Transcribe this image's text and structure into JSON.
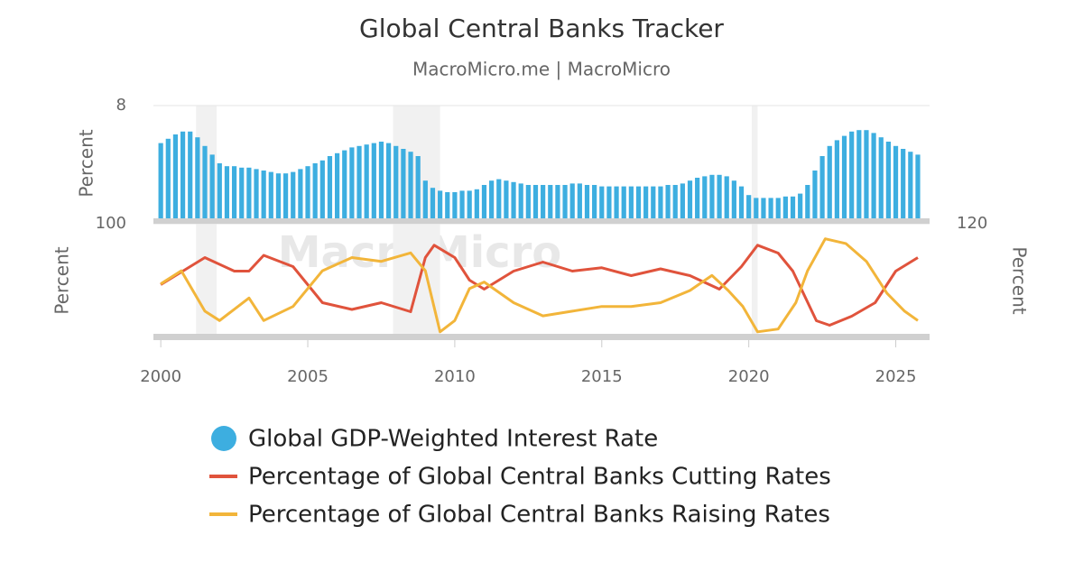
{
  "chart_data": [
    {
      "type": "bar",
      "title": "Global Central Banks Tracker",
      "subtitle": "MacroMicro.me | MacroMicro",
      "watermark": "MacroMicro",
      "y_label": "Percent",
      "ylim": [
        0,
        8
      ],
      "yticks": [
        8
      ],
      "xlim": [
        1999.75,
        2026.15
      ],
      "shaded": [
        [
          2001.2,
          2001.9
        ],
        [
          2007.9,
          2009.5
        ],
        [
          2020.1,
          2020.3
        ]
      ],
      "series": [
        {
          "name": "Global GDP-Weighted Interest Rate",
          "color": "#3daee0",
          "x": [
            2000,
            2000.25,
            2000.5,
            2000.75,
            2001,
            2001.25,
            2001.5,
            2001.75,
            2002,
            2002.25,
            2002.5,
            2002.75,
            2003,
            2003.25,
            2003.5,
            2003.75,
            2004,
            2004.25,
            2004.5,
            2004.75,
            2005,
            2005.25,
            2005.5,
            2005.75,
            2006,
            2006.25,
            2006.5,
            2006.75,
            2007,
            2007.25,
            2007.5,
            2007.75,
            2008,
            2008.25,
            2008.5,
            2008.75,
            2009,
            2009.25,
            2009.5,
            2009.75,
            2010,
            2010.25,
            2010.5,
            2010.75,
            2011,
            2011.25,
            2011.5,
            2011.75,
            2012,
            2012.25,
            2012.5,
            2012.75,
            2013,
            2013.25,
            2013.5,
            2013.75,
            2014,
            2014.25,
            2014.5,
            2014.75,
            2015,
            2015.25,
            2015.5,
            2015.75,
            2016,
            2016.25,
            2016.5,
            2016.75,
            2017,
            2017.25,
            2017.5,
            2017.75,
            2018,
            2018.25,
            2018.5,
            2018.75,
            2019,
            2019.25,
            2019.5,
            2019.75,
            2020,
            2020.25,
            2020.5,
            2020.75,
            2021,
            2021.25,
            2021.5,
            2021.75,
            2022,
            2022.25,
            2022.5,
            2022.75,
            2023,
            2023.25,
            2023.5,
            2023.75,
            2024,
            2024.25,
            2024.5,
            2024.75,
            2025,
            2025.25,
            2025.5,
            2025.75
          ],
          "values": [
            5.4,
            5.7,
            6.0,
            6.2,
            6.2,
            5.8,
            5.2,
            4.6,
            4.0,
            3.8,
            3.8,
            3.7,
            3.7,
            3.6,
            3.5,
            3.4,
            3.3,
            3.3,
            3.4,
            3.6,
            3.8,
            4.0,
            4.2,
            4.5,
            4.7,
            4.9,
            5.1,
            5.2,
            5.3,
            5.4,
            5.5,
            5.4,
            5.2,
            5.0,
            4.8,
            4.5,
            2.8,
            2.3,
            2.1,
            2.0,
            2.0,
            2.1,
            2.1,
            2.2,
            2.5,
            2.8,
            2.9,
            2.8,
            2.7,
            2.6,
            2.5,
            2.5,
            2.5,
            2.5,
            2.5,
            2.5,
            2.6,
            2.6,
            2.5,
            2.5,
            2.4,
            2.4,
            2.4,
            2.4,
            2.4,
            2.4,
            2.4,
            2.4,
            2.4,
            2.5,
            2.5,
            2.6,
            2.8,
            3.0,
            3.1,
            3.2,
            3.2,
            3.1,
            2.8,
            2.4,
            1.8,
            1.6,
            1.6,
            1.6,
            1.6,
            1.7,
            1.7,
            1.9,
            2.5,
            3.5,
            4.5,
            5.2,
            5.6,
            5.9,
            6.2,
            6.3,
            6.3,
            6.1,
            5.8,
            5.5,
            5.2,
            5.0,
            4.8,
            4.6
          ]
        }
      ]
    },
    {
      "type": "line",
      "y_label": "Percent",
      "y2_label": "Percent",
      "ylim": [
        0,
        100
      ],
      "yticks": [
        100
      ],
      "y2lim": [
        0,
        120
      ],
      "y2ticks": [
        120
      ],
      "xlim": [
        1999.75,
        2026.15
      ],
      "xticks": [
        2000,
        2005,
        2010,
        2015,
        2020,
        2025
      ],
      "series": [
        {
          "name": "Percentage of Global Central Banks Cutting Rates",
          "color": "#e0533c",
          "x": [
            2000,
            2001.5,
            2002.5,
            2003,
            2003.5,
            2004.5,
            2005.5,
            2006.5,
            2007.5,
            2008.5,
            2009,
            2009.3,
            2010,
            2010.5,
            2011,
            2012,
            2013,
            2014,
            2015,
            2016,
            2017,
            2018,
            2019,
            2019.75,
            2020.3,
            2021,
            2021.5,
            2022.3,
            2022.75,
            2023.5,
            2024.3,
            2025,
            2025.75
          ],
          "values": [
            46,
            70,
            58,
            58,
            72,
            62,
            30,
            24,
            30,
            22,
            70,
            81,
            70,
            50,
            42,
            58,
            66,
            58,
            61,
            54,
            60,
            54,
            42,
            62,
            81,
            74,
            58,
            14,
            10,
            18,
            30,
            58,
            70
          ]
        },
        {
          "name": "Percentage of Global Central Banks Raising Rates",
          "color": "#f2b53a",
          "axis": "y2",
          "x": [
            2000,
            2000.7,
            2001.5,
            2002,
            2003,
            2003.5,
            2004.5,
            2005.5,
            2006.5,
            2007.5,
            2008.5,
            2009,
            2009.5,
            2010,
            2010.5,
            2011,
            2012,
            2013,
            2014,
            2015,
            2016,
            2017,
            2018,
            2018.75,
            2019.3,
            2019.8,
            2020.3,
            2021,
            2021.6,
            2022,
            2022.6,
            2023.3,
            2024,
            2024.7,
            2025.3,
            2025.75
          ],
          "values": [
            56,
            70,
            27,
            17,
            41,
            17,
            32,
            70,
            84,
            80,
            89,
            70,
            5,
            17,
            51,
            58,
            36,
            22,
            27,
            32,
            32,
            36,
            49,
            65,
            49,
            32,
            5,
            8,
            36,
            70,
            104,
            99,
            80,
            46,
            27,
            17
          ]
        }
      ]
    }
  ]
}
